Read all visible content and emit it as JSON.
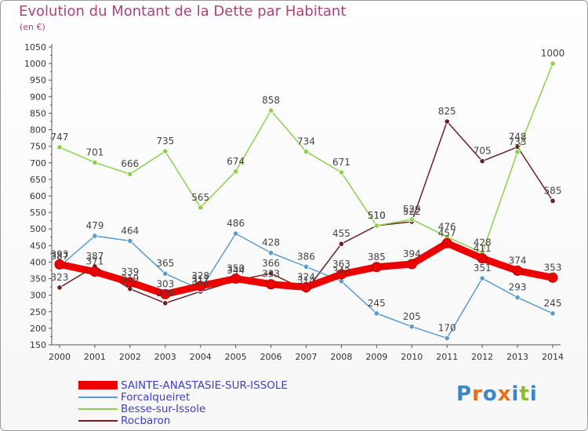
{
  "header": {
    "title": "Evolution du Montant de la Dette par Habitant",
    "subtitle": "(en €)"
  },
  "brand": {
    "text": "Proxiti",
    "letters": [
      {
        "ch": "P",
        "color": "#3b86c8"
      },
      {
        "ch": "r",
        "color": "#e0711f"
      },
      {
        "ch": "o",
        "color": "#3b86c8"
      },
      {
        "ch": "x",
        "color": "#e0711f"
      },
      {
        "ch": "i",
        "color": "#3b86c8"
      },
      {
        "ch": "t",
        "color": "#8bbf2a"
      },
      {
        "ch": "i",
        "color": "#3b86c8"
      }
    ]
  },
  "chart_data": {
    "type": "line",
    "title": "Evolution du Montant de la Dette par Habitant",
    "subtitle": "(en €)",
    "xlabel": "",
    "ylabel": "",
    "x": [
      2000,
      2001,
      2002,
      2003,
      2004,
      2005,
      2006,
      2007,
      2008,
      2009,
      2010,
      2011,
      2012,
      2013,
      2014
    ],
    "ylim": [
      150,
      1050
    ],
    "yticks": [
      150,
      200,
      250,
      300,
      350,
      400,
      450,
      500,
      550,
      600,
      650,
      700,
      750,
      800,
      850,
      900,
      950,
      1000,
      1050
    ],
    "grid": false,
    "legend_position": "bottom-left",
    "series": [
      {
        "name": "Rocbaron",
        "color": "#6b1f24",
        "values": [
          323,
          387,
          319,
          276,
          311,
          344,
          366,
          314,
          455,
          510,
          522,
          825,
          705,
          748,
          585
        ]
      },
      {
        "name": "Besse-sur-Issole",
        "color": "#8bd24a",
        "values": [
          747,
          701,
          666,
          735,
          565,
          674,
          858,
          734,
          671,
          510,
          529,
          476,
          428,
          733,
          1000
        ]
      },
      {
        "name": "Forcalqueiret",
        "color": "#5b9bd0",
        "values": [
          387,
          479,
          464,
          365,
          317,
          486,
          428,
          386,
          342,
          245,
          205,
          170,
          351,
          293,
          245
        ]
      },
      {
        "name": "SAINTE-ANASTASIE-SUR-ISSOLE",
        "color": "#ee0000",
        "values": [
          393,
          371,
          339,
          303,
          328,
          350,
          333,
          324,
          363,
          385,
          394,
          457,
          411,
          374,
          353
        ]
      }
    ],
    "legend": [
      "SAINTE-ANASTASIE-SUR-ISSOLE",
      "Forcalqueiret",
      "Besse-sur-Issole",
      "Rocbaron"
    ]
  }
}
